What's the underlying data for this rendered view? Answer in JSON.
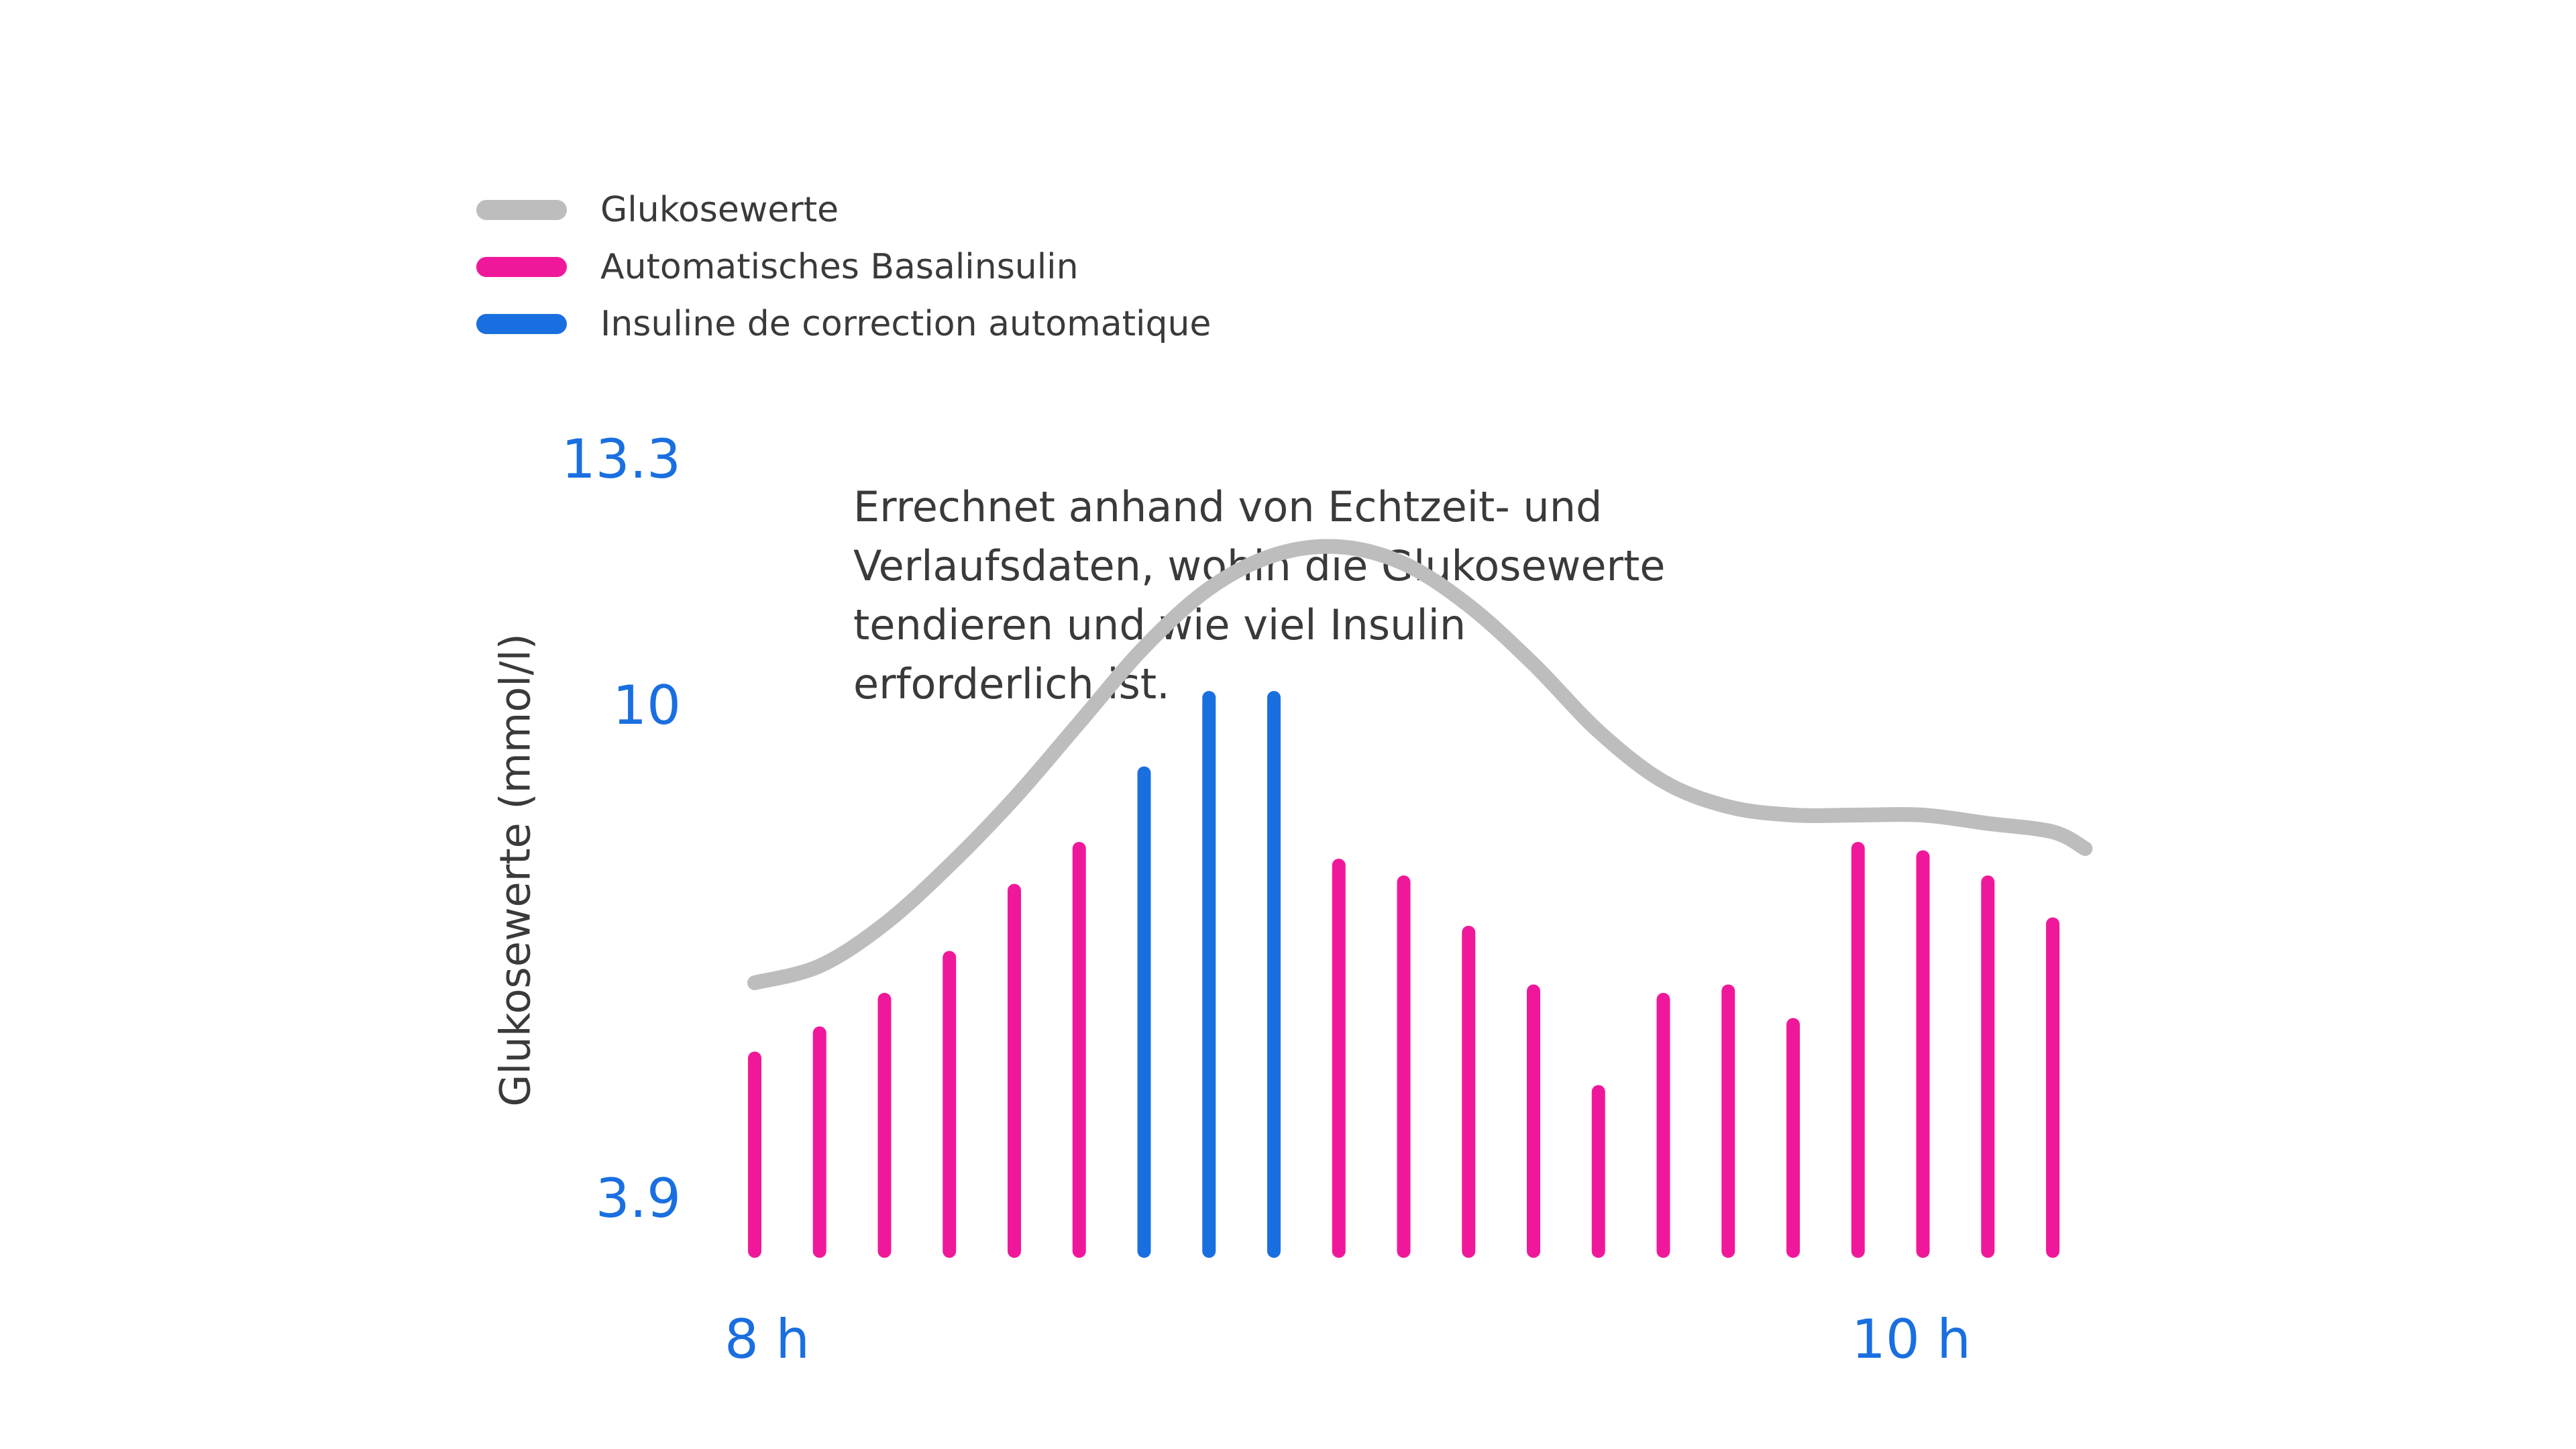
{
  "colors": {
    "glucose": "#bdbdbd",
    "basal": "#f0189a",
    "correction": "#1a6fe0",
    "text": "#3a3a3a",
    "axis_ticks": "#1a6fe0"
  },
  "legend": [
    {
      "label": "Glukosewerte",
      "color": "#bdbdbd"
    },
    {
      "label": "Automatisches Basalinsulin",
      "color": "#f0189a"
    },
    {
      "label": "Insuline de correction automatique",
      "color": "#1a6fe0"
    }
  ],
  "annotation": {
    "line1": "Errechnet anhand von Echtzeit- und",
    "line2": "Verlaufsdaten, wohin die Glukosewerte",
    "line3": "tendieren und wie viel Insulin",
    "line4": "erforderlich ist."
  },
  "chart_data": {
    "type": "bar",
    "title": "",
    "xlabel": "",
    "ylabel": "Glukosewerte (mmol/l)",
    "y_ticks": [
      "13.3",
      "10",
      "3.9"
    ],
    "x_ticks": [
      "8 h",
      "10 h"
    ],
    "ylim": [
      3.9,
      13.3
    ],
    "xlim": [
      8.0,
      10.0
    ],
    "series": [
      {
        "name": "Automatisches Basalinsulin",
        "type": "bar",
        "x": [
          8.0,
          8.1,
          8.2,
          8.3,
          8.4,
          8.5,
          8.9,
          9.0,
          9.1,
          9.2,
          9.3,
          9.4,
          9.5,
          9.6,
          9.7,
          9.8,
          9.9,
          10.0
        ],
        "values": [
          6.2,
          6.5,
          6.9,
          7.4,
          8.2,
          8.7,
          8.5,
          8.3,
          7.7,
          7.0,
          5.8,
          6.9,
          7.0,
          6.6,
          8.7,
          8.6,
          8.3,
          7.8
        ]
      },
      {
        "name": "Insuline de correction automatique",
        "type": "bar",
        "x": [
          8.6,
          8.7,
          8.8
        ],
        "values": [
          9.6,
          10.5,
          10.5
        ]
      },
      {
        "name": "Glukosewerte",
        "type": "line",
        "x": [
          8.0,
          8.1,
          8.2,
          8.3,
          8.4,
          8.5,
          8.6,
          8.7,
          8.8,
          8.9,
          9.0,
          9.1,
          9.2,
          9.3,
          9.4,
          9.5,
          9.6,
          9.7,
          9.8,
          9.9,
          10.0,
          10.05
        ],
        "values": [
          7.1,
          7.3,
          7.8,
          8.5,
          9.3,
          10.2,
          11.1,
          11.8,
          12.2,
          12.3,
          12.1,
          11.6,
          10.9,
          10.1,
          9.5,
          9.2,
          9.1,
          9.1,
          9.1,
          9.0,
          8.9,
          8.7
        ]
      }
    ],
    "grid": false,
    "legend_position": "top-left"
  }
}
